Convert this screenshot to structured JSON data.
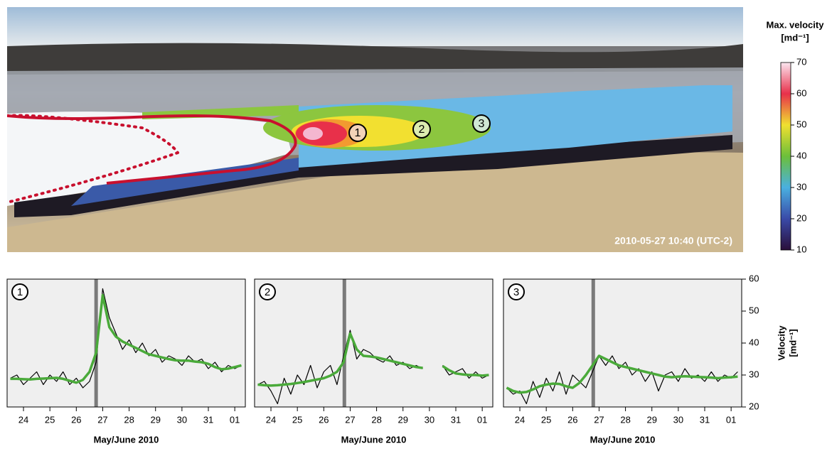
{
  "chart_data": [
    {
      "type": "image",
      "title": "Max. velocity",
      "unit": "[md⁻¹]",
      "timestamp": "2010-05-27  10:40 (UTC-2)",
      "point_labels": [
        "1",
        "2",
        "3"
      ],
      "clim": [
        10,
        70
      ],
      "cticks": [
        10,
        20,
        30,
        40,
        50,
        60,
        70
      ],
      "colors": [
        "#2a0f3a",
        "#3a4aa8",
        "#4ab0e0",
        "#6cbf3a",
        "#f0e030",
        "#e8304a",
        "#fbe6f0"
      ]
    },
    {
      "type": "line",
      "label": "1",
      "x_label": "May/June 2010",
      "x": [
        23.5,
        23.75,
        24,
        24.25,
        24.5,
        24.75,
        25,
        25.25,
        25.5,
        25.75,
        26,
        26.25,
        26.5,
        26.75,
        27,
        27.25,
        27.5,
        27.75,
        28,
        28.25,
        28.5,
        28.75,
        29,
        29.25,
        29.5,
        29.75,
        30,
        30.25,
        30.5,
        30.75,
        31,
        31.25,
        31.5,
        31.75,
        32,
        32.25
      ],
      "xlim": [
        23.38,
        32.4
      ],
      "xticks": [
        24,
        25,
        26,
        27,
        28,
        29,
        30,
        31,
        {
          "value": 32,
          "label": "01"
        }
      ],
      "ylim": [
        20,
        60
      ],
      "event_x": 26.75,
      "series": [
        {
          "color": "#000000",
          "values": [
            29,
            30,
            27,
            29,
            31,
            27,
            30,
            28,
            31,
            27,
            29,
            26,
            28,
            34,
            57,
            48,
            43,
            38,
            41,
            37,
            40,
            36,
            38,
            34,
            36,
            35,
            33,
            36,
            34,
            35,
            32,
            34,
            31,
            33,
            32,
            33
          ]
        },
        {
          "color": "#4aaa3a",
          "values": [
            28.8,
            28.8,
            28.7,
            28.6,
            28.8,
            28.9,
            29,
            29.1,
            28.8,
            28.2,
            27.6,
            28.5,
            31,
            37,
            55,
            45,
            42,
            40.5,
            39.5,
            38.5,
            37.5,
            36.5,
            36,
            35.5,
            35,
            34.6,
            34.5,
            34.5,
            34.2,
            34,
            33.5,
            32.5,
            31.8,
            32,
            32.5,
            33
          ]
        }
      ]
    },
    {
      "type": "line",
      "label": "2",
      "x_label": "May/June 2010",
      "x": [
        23.5,
        23.75,
        24,
        24.25,
        24.5,
        24.75,
        25,
        25.25,
        25.5,
        25.75,
        26,
        26.25,
        26.5,
        26.75,
        27,
        27.25,
        27.5,
        27.75,
        28,
        28.25,
        28.5,
        28.75,
        29,
        29.25,
        29.5,
        29.75,
        30,
        30.25,
        30.5,
        30.75,
        31,
        31.25,
        31.5,
        31.75,
        32,
        32.25
      ],
      "xlim": [
        23.38,
        32.4
      ],
      "xticks": [
        24,
        25,
        26,
        27,
        28,
        29,
        30,
        31,
        {
          "value": 32,
          "label": "01"
        }
      ],
      "ylim": [
        20,
        60
      ],
      "event_x": 26.78,
      "series": [
        {
          "color": "#000000",
          "values": [
            27,
            28,
            25,
            21,
            29,
            24,
            30,
            27,
            33,
            26,
            31,
            33,
            27,
            36,
            44,
            35,
            38,
            37,
            35,
            34,
            36,
            33,
            34,
            32,
            33,
            32,
            null,
            null,
            33,
            30,
            31,
            32,
            29,
            31,
            29,
            30
          ]
        },
        {
          "color": "#4aaa3a",
          "values": [
            27,
            26.8,
            26.7,
            26.8,
            27,
            27.2,
            27.5,
            27.8,
            28.2,
            28.6,
            29,
            29.8,
            31,
            34,
            43,
            38,
            36,
            35.8,
            35.5,
            35,
            34.5,
            34,
            33.5,
            33,
            32.5,
            32.2,
            null,
            null,
            32.8,
            31.5,
            30.5,
            30.2,
            30,
            30,
            29.8,
            30
          ]
        }
      ]
    },
    {
      "type": "line",
      "label": "3",
      "x_label": "May/June 2010",
      "x": [
        23.5,
        23.75,
        24,
        24.25,
        24.5,
        24.75,
        25,
        25.25,
        25.5,
        25.75,
        26,
        26.25,
        26.5,
        26.75,
        27,
        27.25,
        27.5,
        27.75,
        28,
        28.25,
        28.5,
        28.75,
        29,
        29.25,
        29.5,
        29.75,
        30,
        30.25,
        30.5,
        30.75,
        31,
        31.25,
        31.5,
        31.75,
        32,
        32.25
      ],
      "xlim": [
        23.38,
        32.4
      ],
      "xticks": [
        24,
        25,
        26,
        27,
        28,
        29,
        30,
        31,
        {
          "value": 32,
          "label": "01"
        }
      ],
      "ylim": [
        20,
        60
      ],
      "yticks": [
        20,
        30,
        40,
        50,
        60
      ],
      "y_label": "Velocity",
      "y_unit": "[md⁻¹]",
      "event_x": 26.78,
      "series": [
        {
          "color": "#000000",
          "values": [
            26,
            24,
            25,
            21,
            28,
            23,
            29,
            25,
            31,
            24,
            30,
            28,
            26,
            31,
            36,
            33,
            36,
            32,
            34,
            30,
            32,
            28,
            31,
            25,
            30,
            31,
            28,
            32,
            29,
            30,
            28,
            31,
            28,
            30,
            29,
            31
          ]
        },
        {
          "color": "#4aaa3a",
          "values": [
            26,
            25,
            24.5,
            24.7,
            25.5,
            26.5,
            27,
            27.3,
            27.2,
            26.5,
            26,
            27.5,
            30,
            33,
            36,
            35,
            34,
            33,
            32.5,
            32,
            31.5,
            31,
            30.5,
            30,
            29.5,
            29.3,
            29.5,
            29.6,
            29.5,
            29.4,
            29.3,
            29.2,
            29,
            29.2,
            29.3,
            29.5
          ]
        }
      ]
    }
  ]
}
